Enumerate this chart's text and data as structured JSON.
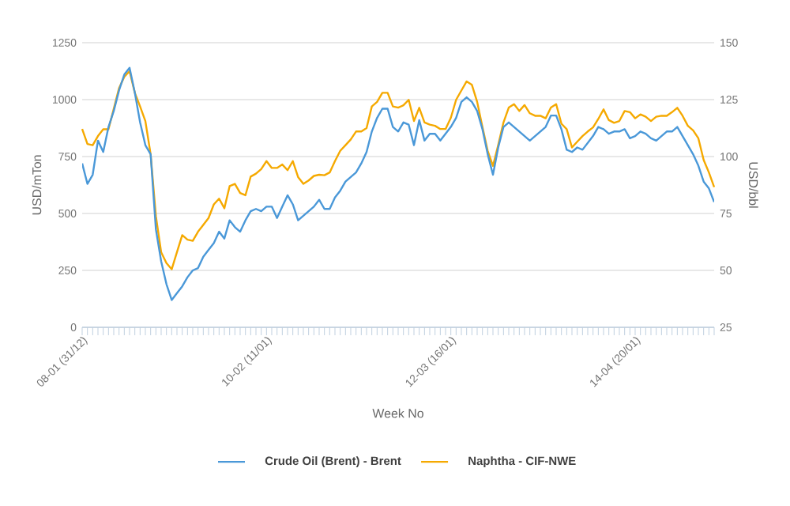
{
  "chart_data": {
    "type": "line",
    "xlabel": "Week No",
    "ylabel": "USD/mTon",
    "y2label": "USD/bbl",
    "categories": [
      "08-01 (31/12)",
      null,
      null,
      null,
      null,
      null,
      null,
      null,
      null,
      null,
      null,
      null,
      null,
      null,
      null,
      null,
      null,
      null,
      null,
      null,
      null,
      null,
      null,
      null,
      null,
      null,
      null,
      null,
      null,
      null,
      null,
      null,
      null,
      null,
      null,
      "10-02 (11/01)",
      null,
      null,
      null,
      null,
      null,
      null,
      null,
      null,
      null,
      null,
      null,
      null,
      null,
      null,
      null,
      null,
      null,
      null,
      null,
      null,
      null,
      null,
      null,
      null,
      null,
      null,
      null,
      null,
      null,
      null,
      null,
      null,
      null,
      null,
      "12-03 (16/01)",
      null,
      null,
      null,
      null,
      null,
      null,
      null,
      null,
      null,
      null,
      null,
      null,
      null,
      null,
      null,
      null,
      null,
      null,
      null,
      null,
      null,
      null,
      null,
      null,
      null,
      null,
      null,
      null,
      null,
      null,
      null,
      null,
      null,
      null,
      "14-04 (20/01)",
      null,
      null,
      null,
      null,
      null,
      null,
      null,
      null,
      null,
      null,
      null,
      null,
      null,
      null,
      null
    ],
    "ylim": [
      0,
      1250
    ],
    "yticks": [
      0,
      250,
      500,
      750,
      1000,
      1250
    ],
    "y2lim": [
      25,
      150
    ],
    "y2ticks": [
      25,
      50,
      75,
      100,
      125,
      150
    ],
    "grid": "y",
    "legend": "bottom",
    "marker": "none",
    "line_style": "solid",
    "series": [
      {
        "name": "Crude Oil (Brent) - Brent",
        "color": "#4a98d8",
        "axis": "y2",
        "values": [
          97,
          88,
          92,
          107,
          102,
          113,
          120,
          129,
          136,
          139,
          128,
          115,
          105,
          101,
          68,
          54,
          44,
          37,
          40,
          43,
          47,
          50,
          51,
          56,
          59,
          62,
          67,
          64,
          72,
          69,
          67,
          72,
          76,
          77,
          76,
          78,
          78,
          73,
          78,
          83,
          79,
          72,
          74,
          76,
          78,
          81,
          77,
          77,
          82,
          85,
          89,
          91,
          93,
          97,
          102,
          111,
          117,
          121,
          121,
          113,
          111,
          115,
          114,
          105,
          116,
          107,
          110,
          110,
          107,
          110,
          113,
          117,
          124,
          126,
          124,
          120,
          112,
          101,
          92,
          104,
          113,
          115,
          113,
          111,
          109,
          107,
          109,
          111,
          113,
          118,
          118,
          112,
          103,
          102,
          104,
          103,
          106,
          109,
          113,
          112,
          110,
          111,
          111,
          112,
          108,
          109,
          111,
          110,
          108,
          107,
          109,
          111,
          111,
          113,
          109,
          105,
          101,
          96,
          89,
          86,
          80
        ]
      },
      {
        "name": "Naphtha - CIF-NWE",
        "color": "#f5a900",
        "values": [
          871,
          805,
          800,
          840,
          870,
          870,
          960,
          1050,
          1100,
          1125,
          1030,
          970,
          906,
          760,
          488,
          330,
          282,
          255,
          330,
          405,
          385,
          380,
          420,
          450,
          480,
          540,
          565,
          523,
          620,
          630,
          590,
          580,
          662,
          675,
          695,
          730,
          700,
          700,
          715,
          690,
          730,
          660,
          630,
          645,
          665,
          670,
          668,
          680,
          730,
          775,
          800,
          825,
          860,
          860,
          875,
          970,
          990,
          1030,
          1030,
          970,
          965,
          975,
          999,
          906,
          964,
          900,
          890,
          885,
          871,
          871,
          920,
          999,
          1040,
          1080,
          1065,
          990,
          880,
          775,
          709,
          801,
          900,
          965,
          980,
          950,
          976,
          940,
          929,
          929,
          918,
          965,
          980,
          894,
          870,
          790,
          815,
          840,
          860,
          878,
          915,
          957,
          910,
          898,
          906,
          950,
          945,
          918,
          935,
          925,
          906,
          925,
          929,
          929,
          945,
          964,
          929,
          885,
          865,
          830,
          735,
          680,
          616
        ]
      }
    ]
  }
}
